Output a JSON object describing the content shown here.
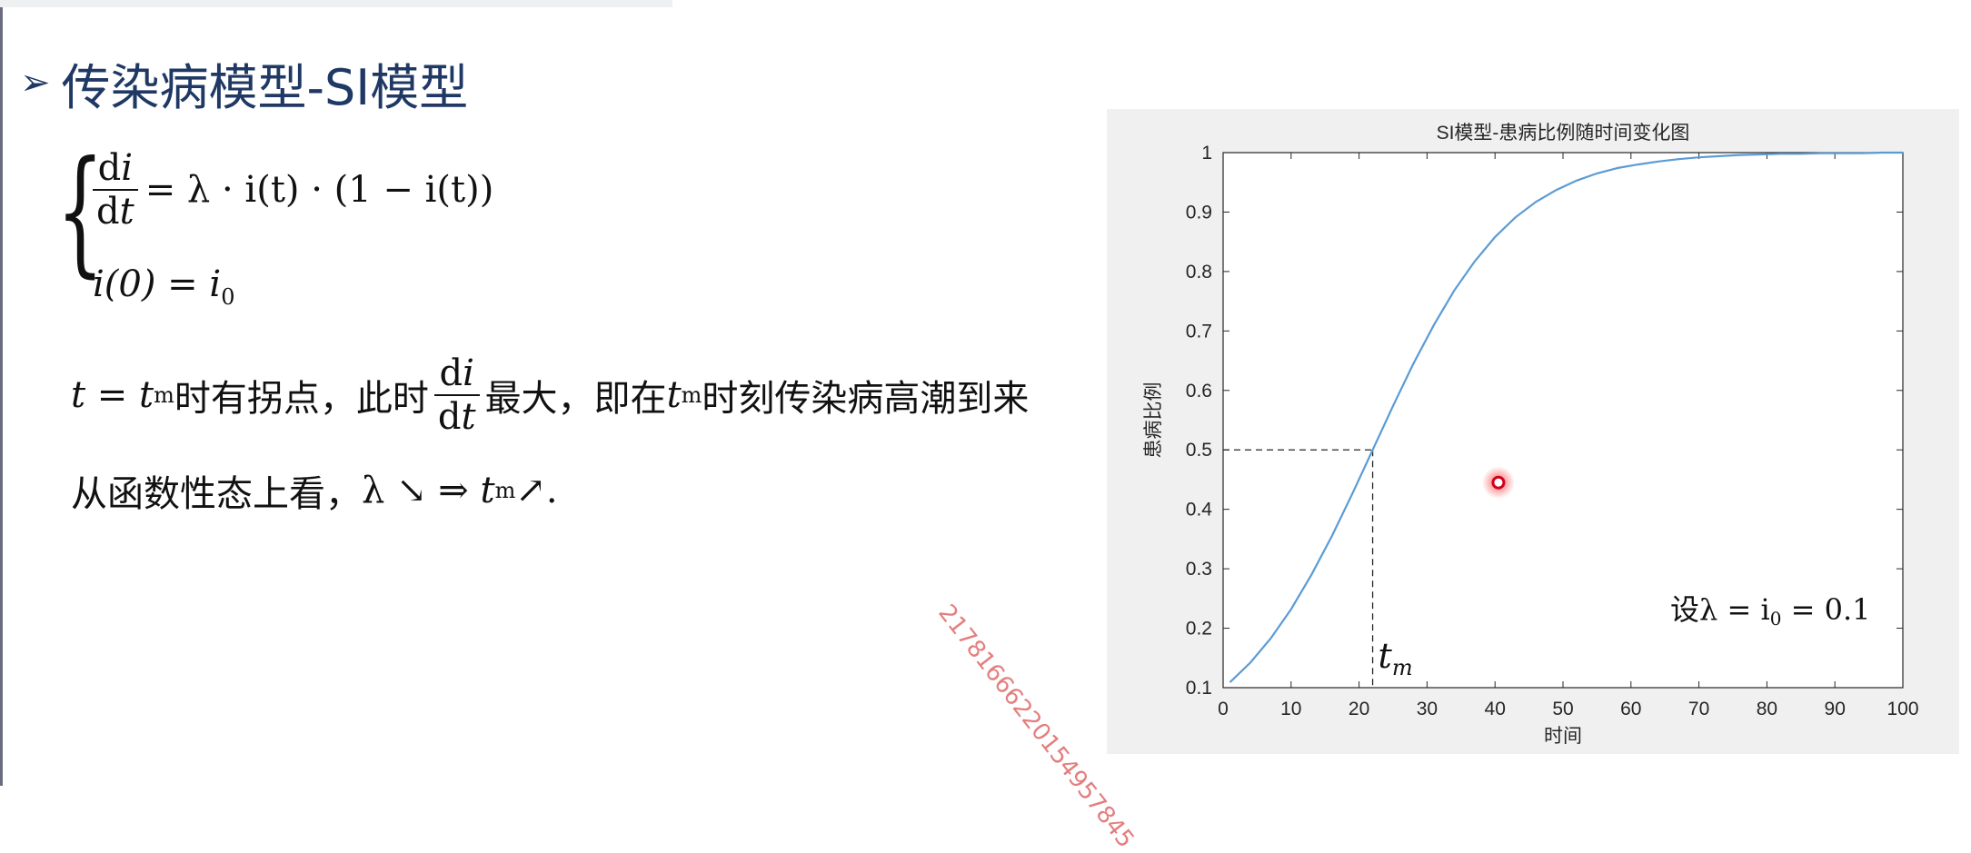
{
  "slide": {
    "title": "传染病模型-SI模型",
    "equations": {
      "eq1_rhs": "= λ · i(t) · (1 − i(t))",
      "eq2": "i(0) = i"
    },
    "text_line1_a": "时有拐点，此时",
    "text_line1_b": "最大，即在",
    "text_line1_c": "时刻传染病高潮到来",
    "text_line2_a": "从函数性态上看，",
    "text_line2_b": "λ ↘ ⇒ ",
    "text_line2_c": " ↗.",
    "watermark": "21781666220154957845"
  },
  "chart_data": {
    "type": "line",
    "title": "SI模型-患病比例随时间变化图",
    "xlabel": "时间",
    "ylabel": "患病比例",
    "xlim": [
      0,
      100
    ],
    "ylim": [
      0.1,
      1
    ],
    "xticks": [
      0,
      10,
      20,
      30,
      40,
      50,
      60,
      70,
      80,
      90,
      100
    ],
    "yticks": [
      0.1,
      0.2,
      0.3,
      0.4,
      0.5,
      0.6,
      0.7,
      0.8,
      0.9,
      1
    ],
    "grid": false,
    "series": [
      {
        "color": "#5b9bd5",
        "x": [
          1,
          4,
          7,
          10,
          13,
          16,
          19,
          22,
          25,
          28,
          31,
          34,
          37,
          40,
          43,
          46,
          49,
          52,
          55,
          58,
          61,
          64,
          67,
          70,
          73,
          76,
          79,
          82,
          85,
          88,
          91,
          94,
          97,
          100
        ],
        "y": [
          0.109,
          0.142,
          0.183,
          0.232,
          0.29,
          0.355,
          0.426,
          0.5,
          0.574,
          0.645,
          0.71,
          0.768,
          0.817,
          0.858,
          0.891,
          0.917,
          0.937,
          0.953,
          0.965,
          0.974,
          0.98,
          0.985,
          0.989,
          0.992,
          0.994,
          0.996,
          0.997,
          0.998,
          0.998,
          0.999,
          0.999,
          0.999,
          1.0,
          1.0
        ]
      }
    ],
    "reference_lines": {
      "x": 22,
      "y": 0.5,
      "style": "dashed"
    },
    "annotations": {
      "tm_label": "t",
      "tm_sub": "m",
      "param_text": "设λ = i",
      "param_sub": "0",
      "param_value": " = 0.1"
    },
    "marker": {
      "x": 40.5,
      "y": 0.445,
      "color": "#d0021b"
    }
  }
}
